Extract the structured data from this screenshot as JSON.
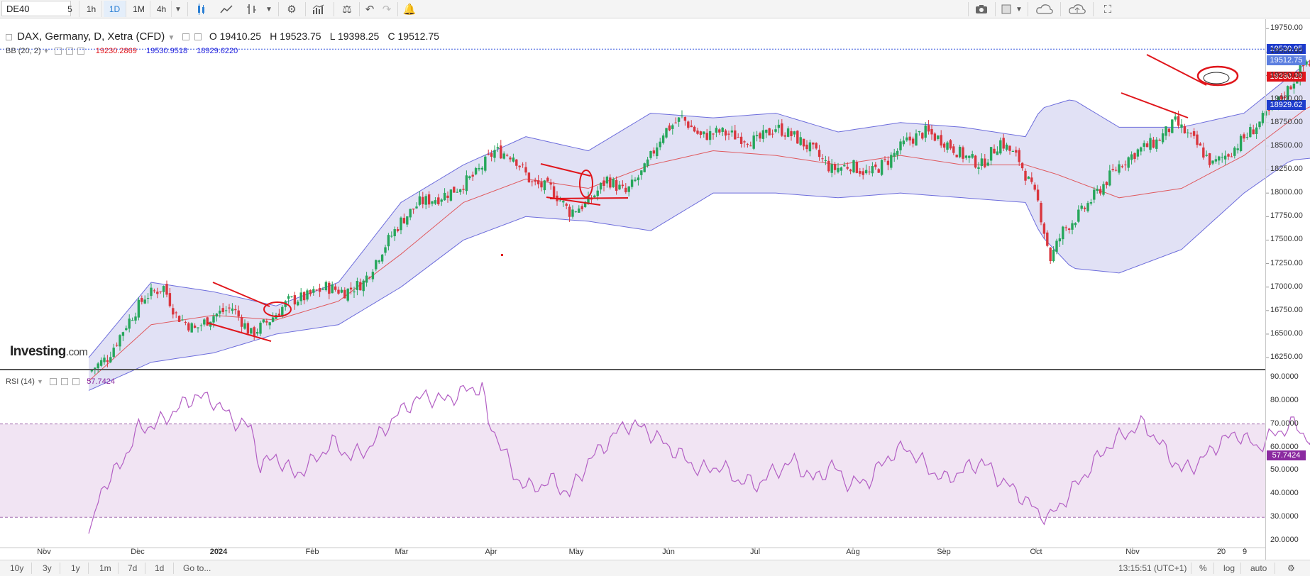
{
  "toolbar": {
    "symbol": "DE40",
    "intervals": [
      "5",
      "1h",
      "1D",
      "1M",
      "4h"
    ],
    "active_interval": "1D",
    "icons": [
      "candle-style-icon",
      "line-style-icon",
      "indicators-icon",
      "dropdown-icon",
      "settings-icon",
      "studies-icon",
      "compare-icon",
      "undo-icon",
      "redo-icon",
      "alert-icon",
      "camera-icon",
      "layout-icon",
      "cloud-save-icon",
      "cloud-load-icon",
      "fullscreen-icon"
    ]
  },
  "legend": {
    "title": "DAX, Germany, D, Xetra (CFD)",
    "open": "O 19410.25",
    "high": "H 19523.75",
    "low": "L 19398.25",
    "close": "C 19512.75",
    "bb_label": "BB (20, 2)",
    "bb_mid": "19230.2869",
    "bb_upper": "19530.9518",
    "bb_lower": "18929.6220"
  },
  "price_tags": {
    "upper": "19530.95",
    "last": "19512.75",
    "mid": "19230.29",
    "lower": "18929.62"
  },
  "rsi": {
    "label": "RSI (14)",
    "value": "57.7424",
    "tag": "57.7424"
  },
  "logo": {
    "name": "Investing",
    "suffix": ".com"
  },
  "bottombar": {
    "ranges": [
      "10y",
      "3y",
      "1y",
      "1m",
      "7d",
      "1d"
    ],
    "goto": "Go to...",
    "time": "13:15:51 (UTC+1)",
    "percent": "%",
    "log": "log",
    "auto": "auto"
  },
  "colors": {
    "up": "#26a65b",
    "down": "#d9363e",
    "band_fill": "#dcdcf3",
    "band_line": "#6d6ddc",
    "mid_line": "#e0595e",
    "rsi_line": "#b35fc4",
    "rsi_fill": "#f1e4f3",
    "annotation": "#e0151b"
  },
  "chart_data": {
    "type": "candlestick",
    "title": "DAX, Germany, D, Xetra (CFD)",
    "y_axis": {
      "ticks": [
        "19750.00",
        "19500.00",
        "19250.00",
        "19000.00",
        "18750.00",
        "18500.00",
        "18250.00",
        "18000.00",
        "17750.00",
        "17500.00",
        "17250.00",
        "17000.00",
        "16750.00",
        "16500.00",
        "16250.00"
      ],
      "ylim": [
        16130,
        19850
      ]
    },
    "x_axis": {
      "ticks": [
        "Nov",
        "Dec",
        "2024",
        "Feb",
        "Mar",
        "Apr",
        "May",
        "Jun",
        "Jul",
        "Aug",
        "Sep",
        "Oct",
        "Nov",
        "20",
        "9"
      ]
    },
    "close_path": [
      [
        0,
        16100
      ],
      [
        6,
        16250
      ],
      [
        12,
        16600
      ],
      [
        18,
        16900
      ],
      [
        24,
        17000
      ],
      [
        28,
        16700
      ],
      [
        34,
        16550
      ],
      [
        40,
        16700
      ],
      [
        46,
        16780
      ],
      [
        52,
        16500
      ],
      [
        58,
        16650
      ],
      [
        64,
        16850
      ],
      [
        70,
        16900
      ],
      [
        76,
        17000
      ],
      [
        82,
        16950
      ],
      [
        88,
        17050
      ],
      [
        94,
        17400
      ],
      [
        100,
        17700
      ],
      [
        106,
        17900
      ],
      [
        112,
        17950
      ],
      [
        118,
        18050
      ],
      [
        124,
        18200
      ],
      [
        130,
        18450
      ],
      [
        136,
        18400
      ],
      [
        142,
        18100
      ],
      [
        148,
        18050
      ],
      [
        154,
        17800
      ],
      [
        160,
        17900
      ],
      [
        166,
        18150
      ],
      [
        172,
        18000
      ],
      [
        178,
        18250
      ],
      [
        184,
        18650
      ],
      [
        190,
        18800
      ],
      [
        196,
        18600
      ],
      [
        202,
        18650
      ],
      [
        208,
        18600
      ],
      [
        214,
        18550
      ],
      [
        220,
        18700
      ],
      [
        226,
        18600
      ],
      [
        232,
        18450
      ],
      [
        238,
        18250
      ],
      [
        244,
        18300
      ],
      [
        250,
        18200
      ],
      [
        256,
        18350
      ],
      [
        262,
        18550
      ],
      [
        268,
        18650
      ],
      [
        274,
        18550
      ],
      [
        280,
        18400
      ],
      [
        286,
        18300
      ],
      [
        292,
        18550
      ],
      [
        298,
        18350
      ],
      [
        304,
        17900
      ],
      [
        308,
        17300
      ],
      [
        312,
        17600
      ],
      [
        318,
        17800
      ],
      [
        324,
        18050
      ],
      [
        330,
        18300
      ],
      [
        336,
        18450
      ],
      [
        342,
        18550
      ],
      [
        348,
        18750
      ],
      [
        354,
        18550
      ],
      [
        360,
        18300
      ],
      [
        366,
        18450
      ],
      [
        372,
        18650
      ],
      [
        378,
        18850
      ],
      [
        384,
        19100
      ],
      [
        390,
        19400
      ],
      [
        396,
        19300
      ],
      [
        402,
        19400
      ],
      [
        408,
        19550
      ],
      [
        414,
        19700
      ],
      [
        420,
        19650
      ],
      [
        426,
        19500
      ],
      [
        432,
        19450
      ],
      [
        438,
        19300
      ],
      [
        444,
        19200
      ],
      [
        450,
        19350
      ],
      [
        456,
        19200
      ],
      [
        462,
        19150
      ],
      [
        468,
        19050
      ],
      [
        474,
        19150
      ],
      [
        480,
        19300
      ],
      [
        486,
        19420
      ],
      [
        492,
        19513
      ]
    ],
    "bb_upper": [
      [
        0,
        16250
      ],
      [
        20,
        17050
      ],
      [
        40,
        16950
      ],
      [
        60,
        16800
      ],
      [
        80,
        17050
      ],
      [
        100,
        17900
      ],
      [
        120,
        18300
      ],
      [
        140,
        18600
      ],
      [
        160,
        18450
      ],
      [
        180,
        18850
      ],
      [
        200,
        18800
      ],
      [
        220,
        18850
      ],
      [
        240,
        18650
      ],
      [
        260,
        18750
      ],
      [
        280,
        18700
      ],
      [
        300,
        18600
      ],
      [
        305,
        18900
      ],
      [
        315,
        19000
      ],
      [
        330,
        18700
      ],
      [
        350,
        18700
      ],
      [
        370,
        18850
      ],
      [
        385,
        19250
      ],
      [
        400,
        19650
      ],
      [
        420,
        19800
      ],
      [
        440,
        19750
      ],
      [
        460,
        19700
      ],
      [
        480,
        19650
      ],
      [
        492,
        19531
      ]
    ],
    "bb_lower": [
      [
        0,
        15900
      ],
      [
        20,
        16200
      ],
      [
        40,
        16300
      ],
      [
        60,
        16500
      ],
      [
        80,
        16600
      ],
      [
        100,
        17000
      ],
      [
        120,
        17500
      ],
      [
        140,
        17750
      ],
      [
        160,
        17700
      ],
      [
        180,
        17600
      ],
      [
        200,
        18000
      ],
      [
        220,
        18000
      ],
      [
        240,
        17950
      ],
      [
        260,
        18000
      ],
      [
        280,
        17950
      ],
      [
        300,
        17900
      ],
      [
        305,
        17550
      ],
      [
        315,
        17200
      ],
      [
        330,
        17150
      ],
      [
        350,
        17400
      ],
      [
        370,
        18000
      ],
      [
        385,
        18350
      ],
      [
        400,
        18400
      ],
      [
        420,
        18700
      ],
      [
        440,
        18900
      ],
      [
        460,
        18950
      ],
      [
        480,
        18950
      ],
      [
        492,
        18930
      ]
    ],
    "bb_mid": [
      [
        0,
        16000
      ],
      [
        20,
        16600
      ],
      [
        40,
        16700
      ],
      [
        60,
        16650
      ],
      [
        80,
        16850
      ],
      [
        100,
        17350
      ],
      [
        120,
        17900
      ],
      [
        140,
        18150
      ],
      [
        160,
        18050
      ],
      [
        180,
        18300
      ],
      [
        200,
        18450
      ],
      [
        220,
        18400
      ],
      [
        240,
        18300
      ],
      [
        260,
        18400
      ],
      [
        280,
        18300
      ],
      [
        300,
        18300
      ],
      [
        310,
        18200
      ],
      [
        330,
        17950
      ],
      [
        350,
        18050
      ],
      [
        370,
        18400
      ],
      [
        390,
        18900
      ],
      [
        410,
        19200
      ],
      [
        430,
        19400
      ],
      [
        450,
        19350
      ],
      [
        470,
        19250
      ],
      [
        492,
        19230
      ]
    ],
    "rsi": {
      "series": [
        [
          0,
          23
        ],
        [
          4,
          42
        ],
        [
          10,
          52
        ],
        [
          16,
          68
        ],
        [
          22,
          70
        ],
        [
          28,
          76
        ],
        [
          34,
          82
        ],
        [
          40,
          80
        ],
        [
          46,
          72
        ],
        [
          52,
          68
        ],
        [
          55,
          52
        ],
        [
          60,
          56
        ],
        [
          66,
          48
        ],
        [
          72,
          54
        ],
        [
          78,
          62
        ],
        [
          84,
          56
        ],
        [
          90,
          60
        ],
        [
          96,
          70
        ],
        [
          102,
          78
        ],
        [
          108,
          82
        ],
        [
          114,
          80
        ],
        [
          120,
          84
        ],
        [
          126,
          86
        ],
        [
          128,
          70
        ],
        [
          132,
          62
        ],
        [
          136,
          48
        ],
        [
          142,
          42
        ],
        [
          148,
          46
        ],
        [
          154,
          40
        ],
        [
          160,
          54
        ],
        [
          166,
          62
        ],
        [
          172,
          70
        ],
        [
          178,
          68
        ],
        [
          184,
          62
        ],
        [
          190,
          56
        ],
        [
          196,
          50
        ],
        [
          202,
          52
        ],
        [
          208,
          46
        ],
        [
          214,
          44
        ],
        [
          220,
          50
        ],
        [
          226,
          54
        ],
        [
          232,
          46
        ],
        [
          238,
          52
        ],
        [
          244,
          44
        ],
        [
          250,
          46
        ],
        [
          256,
          56
        ],
        [
          262,
          60
        ],
        [
          268,
          52
        ],
        [
          274,
          46
        ],
        [
          280,
          50
        ],
        [
          286,
          54
        ],
        [
          292,
          46
        ],
        [
          298,
          40
        ],
        [
          304,
          32
        ],
        [
          308,
          30
        ],
        [
          314,
          40
        ],
        [
          320,
          50
        ],
        [
          326,
          60
        ],
        [
          332,
          66
        ],
        [
          338,
          70
        ],
        [
          344,
          60
        ],
        [
          350,
          50
        ],
        [
          356,
          54
        ],
        [
          362,
          62
        ],
        [
          368,
          66
        ],
        [
          374,
          60
        ],
        [
          380,
          66
        ],
        [
          386,
          70
        ],
        [
          392,
          62
        ],
        [
          398,
          60
        ],
        [
          404,
          66
        ],
        [
          410,
          64
        ],
        [
          416,
          60
        ],
        [
          420,
          56
        ],
        [
          426,
          48
        ],
        [
          432,
          54
        ],
        [
          438,
          48
        ],
        [
          444,
          52
        ],
        [
          450,
          46
        ],
        [
          456,
          50
        ],
        [
          462,
          44
        ],
        [
          468,
          52
        ],
        [
          474,
          54
        ],
        [
          480,
          58
        ],
        [
          486,
          55
        ],
        [
          492,
          57.7
        ]
      ],
      "overbought": 70,
      "oversold": 30,
      "ticks": [
        "90.0000",
        "80.0000",
        "70.0000",
        "60.0000",
        "50.0000",
        "40.0000",
        "30.0000",
        "20.0000"
      ]
    }
  }
}
